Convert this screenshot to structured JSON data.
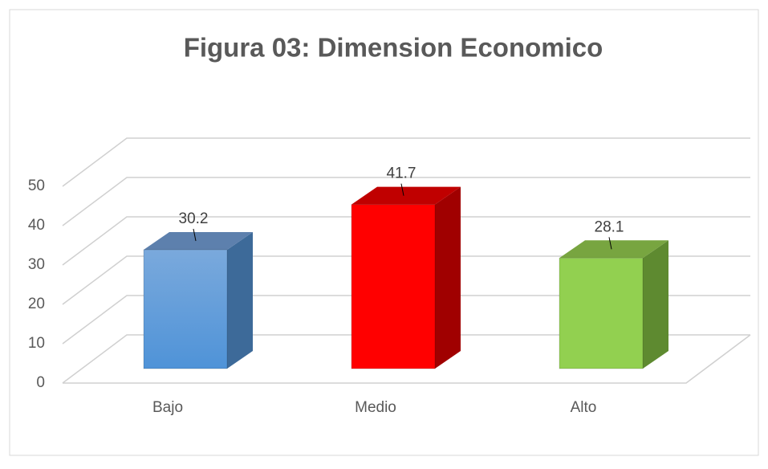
{
  "chart_data": {
    "type": "bar3d",
    "title": "Figura 03: Dimension Economico",
    "categories": [
      "Bajo",
      "Medio",
      "Alto"
    ],
    "values": [
      30.2,
      41.7,
      28.1
    ],
    "colors": [
      [
        "#5b9bd5",
        "#3d6a99",
        "#5d80ad"
      ],
      [
        "#ff0000",
        "#a00000",
        "#c00000"
      ],
      [
        "#92d050",
        "#5e8a30",
        "#78a540"
      ]
    ],
    "ylim": [
      0,
      50
    ],
    "yticks": [
      0,
      10,
      20,
      30,
      40,
      50
    ],
    "grid": true
  }
}
